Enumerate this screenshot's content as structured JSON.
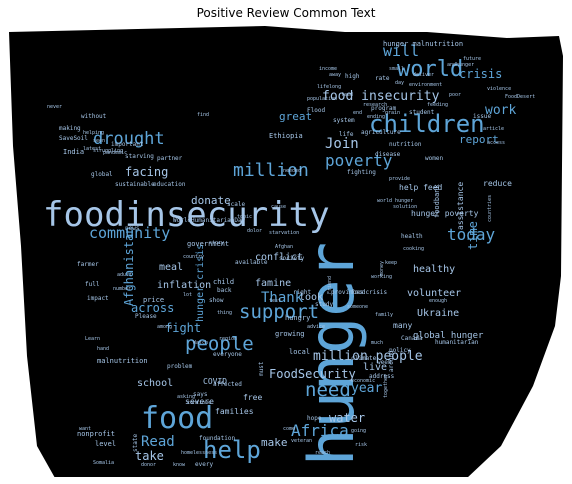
{
  "title": "Positive Review Common Text",
  "colors": {
    "background": "#000000",
    "page": "#ffffff",
    "light": "#a6c6e8",
    "mid": "#5ea5d8",
    "dark": "#2e6f9e"
  },
  "words": [
    "foodinsecurity",
    "hunger",
    "food",
    "children",
    "world",
    "help",
    "people",
    "support",
    "need",
    "drought",
    "million",
    "Africa",
    "poverty",
    "today",
    "Join",
    "will",
    "community",
    "food insecurity",
    "work",
    "crisis",
    "million people",
    "Read",
    "Thank",
    "year",
    "FoodSecurity",
    "across",
    "fight",
    "water",
    "take",
    "report",
    "hunger crisis",
    "time",
    "facing",
    "donate",
    "great",
    "Afghanistan",
    "meal",
    "make",
    "school",
    "conflict",
    "look",
    "live",
    "healthy",
    "volunteer",
    "famine",
    "inflation",
    "Ukraine",
    "global hunger",
    "reduce",
    "assistance",
    "foodbank",
    "help feed",
    "hunger poverty",
    "families",
    "free",
    "COVID",
    "severe",
    "level",
    "nonprofit",
    "malnutrition",
    "child",
    "hungry",
    "growing",
    "local",
    "government",
    "hunger malnutrition",
    "state",
    "foundation",
    "rate",
    "high",
    "program",
    "Ethiopia",
    "many",
    "week",
    "Canada",
    "policy",
    "humanitarian",
    "health",
    "women",
    "nutrition",
    "agriculture",
    "life",
    "disease",
    "India",
    "global",
    "sustainable",
    "education",
    "partner",
    "WorldHumanitarianDay",
    "farmer",
    "news",
    "important",
    "without",
    "making",
    "SaveSoil",
    "starving",
    "pandemic",
    "issue",
    "feeding",
    "article",
    "access",
    "research",
    "population",
    "lifelong",
    "feed",
    "poor",
    "environment",
    "ending",
    "end",
    "grain",
    "future",
    "violence",
    "income",
    "away",
    "small",
    "FoodDesert",
    "helping",
    "seen",
    "struggling",
    "never",
    "latest",
    "price",
    "impact",
    "full",
    "Please",
    "Learn",
    "hand",
    "want",
    "Somalia",
    "donor",
    "every",
    "know",
    "come",
    "reach",
    "veteran",
    "risk",
    "going",
    "economic",
    "climate",
    "address",
    "study",
    "right",
    "provinces",
    "foodcrisis",
    "keep",
    "money",
    "world hunger",
    "working",
    "student",
    "fighting",
    "provide",
    "solution",
    "topic",
    "scale",
    "society",
    "back",
    "Watch",
    "region",
    "everyone",
    "show",
    "thing",
    "story",
    "country",
    "available",
    "starvation",
    "Afghan",
    "hope",
    "must",
    "Friend",
    "together",
    "homelessness",
    "continue",
    "says",
    "affected",
    "asking",
    "problem",
    "among",
    "adult",
    "number",
    "around",
    "family",
    "enough",
    "someone",
    "much",
    "advice",
    "test",
    "cause",
    "needed",
    "find",
    "lot",
    "dolor",
    "Flood",
    "system",
    "cooking",
    "countries",
    "day",
    "deliver",
    "andhunger"
  ]
}
